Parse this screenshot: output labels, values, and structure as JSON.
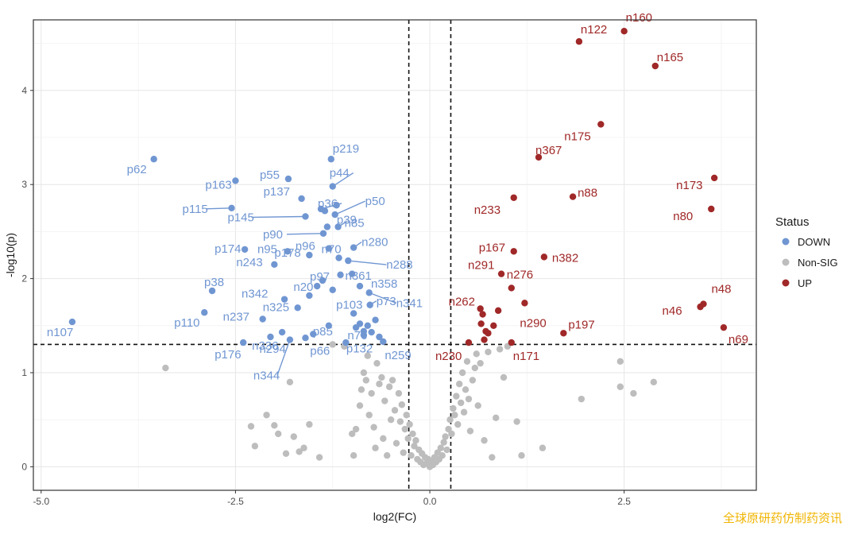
{
  "chart_data": {
    "type": "scatter",
    "title": "",
    "xlabel": "log2(FC)",
    "ylabel": "-log10(p)",
    "xlim": [
      -5.1,
      4.2
    ],
    "ylim": [
      -0.25,
      4.75
    ],
    "x_ticks": [
      -5,
      -2.5,
      0,
      2.5
    ],
    "x_tick_labels": [
      "-5.0",
      "-2.5",
      "0.0",
      "2.5"
    ],
    "y_ticks": [
      0,
      1,
      2,
      3,
      4
    ],
    "y_tick_labels": [
      "0",
      "1",
      "2",
      "3",
      "4"
    ],
    "grid": true,
    "threshold_lines": {
      "vertical": [
        -0.27,
        0.27
      ],
      "horizontal": 1.3
    },
    "legend": {
      "title": "Status",
      "placement": "right",
      "entries": [
        {
          "label": "DOWN",
          "color": "#7096d2"
        },
        {
          "label": "Non-SIG",
          "color": "#bdbdbd"
        },
        {
          "label": "UP",
          "color": "#a02828"
        }
      ]
    },
    "series": [
      {
        "name": "DOWN",
        "color": "#7096d2",
        "points": [
          {
            "x": -4.6,
            "y": 1.54,
            "label": "n107"
          },
          {
            "x": -3.55,
            "y": 3.27,
            "label": "p62"
          },
          {
            "x": -2.9,
            "y": 1.64,
            "label": "p110"
          },
          {
            "x": -2.8,
            "y": 1.87,
            "label": "p38"
          },
          {
            "x": -2.5,
            "y": 3.04,
            "label": "p163"
          },
          {
            "x": -2.55,
            "y": 2.75,
            "label": "p115"
          },
          {
            "x": -2.38,
            "y": 2.31,
            "label": "p174"
          },
          {
            "x": -2.4,
            "y": 1.32,
            "label": "p176"
          },
          {
            "x": -2.15,
            "y": 1.57,
            "label": "n237"
          },
          {
            "x": -2.05,
            "y": 1.38,
            "label": "n294"
          },
          {
            "x": -2.0,
            "y": 2.15,
            "label": "n243"
          },
          {
            "x": -1.9,
            "y": 1.43,
            "label": "n336"
          },
          {
            "x": -1.87,
            "y": 1.78,
            "label": "n342"
          },
          {
            "x": -1.8,
            "y": 1.35,
            "label": "n344"
          },
          {
            "x": -1.83,
            "y": 2.29,
            "label": "n95"
          },
          {
            "x": -1.82,
            "y": 3.06,
            "label": "p55"
          },
          {
            "x": -1.65,
            "y": 2.85,
            "label": "p137"
          },
          {
            "x": -1.6,
            "y": 2.66,
            "label": "p145"
          },
          {
            "x": -1.7,
            "y": 1.69,
            "label": "n325"
          },
          {
            "x": -1.55,
            "y": 1.82,
            "label": "n20"
          },
          {
            "x": -1.55,
            "y": 2.25,
            "label": "p178"
          },
          {
            "x": -1.5,
            "y": 1.41,
            "label": "p66"
          },
          {
            "x": -1.4,
            "y": 2.74,
            "label": "p36"
          },
          {
            "x": -1.37,
            "y": 2.48,
            "label": "p90"
          },
          {
            "x": -1.38,
            "y": 1.98,
            "label": "p97"
          },
          {
            "x": -1.32,
            "y": 2.55,
            "label": "p39"
          },
          {
            "x": -1.3,
            "y": 2.32,
            "label": "n96"
          },
          {
            "x": -1.3,
            "y": 1.5,
            "label": "p85"
          },
          {
            "x": -1.25,
            "y": 2.98,
            "label": "p44"
          },
          {
            "x": -1.27,
            "y": 3.27,
            "label": "p219"
          },
          {
            "x": -1.22,
            "y": 2.68,
            "label": "p50"
          },
          {
            "x": -1.18,
            "y": 2.55,
            "label": "n85"
          },
          {
            "x": -1.17,
            "y": 2.22,
            "label": "n70"
          },
          {
            "x": -1.15,
            "y": 2.04,
            "label": "n361"
          },
          {
            "x": -1.08,
            "y": 1.32,
            "label": "n76"
          },
          {
            "x": -1.05,
            "y": 2.19,
            "label": "n288"
          },
          {
            "x": -0.98,
            "y": 2.33,
            "label": "n280"
          },
          {
            "x": -0.98,
            "y": 1.63,
            "label": "p103"
          },
          {
            "x": -0.9,
            "y": 1.92,
            "label": "n358"
          },
          {
            "x": -0.85,
            "y": 1.4,
            "label": "p132"
          },
          {
            "x": -0.78,
            "y": 1.85,
            "label": "n341"
          },
          {
            "x": -0.77,
            "y": 1.72,
            "label": "p73"
          },
          {
            "x": -0.6,
            "y": 1.33,
            "label": "n259"
          },
          {
            "x": -1.45,
            "y": 1.92
          },
          {
            "x": -1.35,
            "y": 2.72
          },
          {
            "x": -1.2,
            "y": 2.78
          },
          {
            "x": -1.0,
            "y": 2.05
          },
          {
            "x": -0.95,
            "y": 1.48
          },
          {
            "x": -0.9,
            "y": 1.52
          },
          {
            "x": -0.85,
            "y": 1.44
          },
          {
            "x": -0.8,
            "y": 1.5
          },
          {
            "x": -0.75,
            "y": 1.43
          },
          {
            "x": -0.7,
            "y": 1.56
          },
          {
            "x": -0.65,
            "y": 1.38
          },
          {
            "x": -1.6,
            "y": 1.37
          },
          {
            "x": -1.25,
            "y": 1.88
          }
        ]
      },
      {
        "name": "Non-SIG",
        "color": "#bdbdbd",
        "points": [
          {
            "x": -3.4,
            "y": 1.05
          },
          {
            "x": -2.3,
            "y": 0.43
          },
          {
            "x": -2.25,
            "y": 0.22
          },
          {
            "x": -2.1,
            "y": 0.55
          },
          {
            "x": -2.0,
            "y": 0.44
          },
          {
            "x": -1.95,
            "y": 0.35
          },
          {
            "x": -1.85,
            "y": 0.14
          },
          {
            "x": -1.8,
            "y": 0.9
          },
          {
            "x": -1.75,
            "y": 0.32
          },
          {
            "x": -1.68,
            "y": 0.16
          },
          {
            "x": -1.62,
            "y": 0.2
          },
          {
            "x": -1.55,
            "y": 0.45
          },
          {
            "x": -1.42,
            "y": 0.1
          },
          {
            "x": -1.25,
            "y": 1.3
          },
          {
            "x": -1.1,
            "y": 1.28
          },
          {
            "x": -1.0,
            "y": 0.35
          },
          {
            "x": -0.98,
            "y": 0.12
          },
          {
            "x": -0.95,
            "y": 0.4
          },
          {
            "x": -0.9,
            "y": 0.65
          },
          {
            "x": -0.88,
            "y": 0.82
          },
          {
            "x": -0.85,
            "y": 1.0
          },
          {
            "x": -0.82,
            "y": 0.92
          },
          {
            "x": -0.8,
            "y": 1.18
          },
          {
            "x": -0.78,
            "y": 0.55
          },
          {
            "x": -0.75,
            "y": 0.78
          },
          {
            "x": -0.72,
            "y": 0.42
          },
          {
            "x": -0.7,
            "y": 0.2
          },
          {
            "x": -0.68,
            "y": 1.1
          },
          {
            "x": -0.65,
            "y": 0.88
          },
          {
            "x": -0.62,
            "y": 0.95
          },
          {
            "x": -0.6,
            "y": 0.3
          },
          {
            "x": -0.58,
            "y": 0.7
          },
          {
            "x": -0.55,
            "y": 0.12
          },
          {
            "x": -0.52,
            "y": 0.85
          },
          {
            "x": -0.5,
            "y": 0.5
          },
          {
            "x": -0.48,
            "y": 0.92
          },
          {
            "x": -0.45,
            "y": 0.6
          },
          {
            "x": -0.43,
            "y": 0.25
          },
          {
            "x": -0.4,
            "y": 0.78
          },
          {
            "x": -0.38,
            "y": 0.48
          },
          {
            "x": -0.36,
            "y": 0.66
          },
          {
            "x": -0.34,
            "y": 0.15
          },
          {
            "x": -0.32,
            "y": 0.4
          },
          {
            "x": -0.3,
            "y": 0.55
          },
          {
            "x": -0.28,
            "y": 0.3
          },
          {
            "x": -0.26,
            "y": 0.45
          },
          {
            "x": -0.24,
            "y": 0.12
          },
          {
            "x": -0.22,
            "y": 0.35
          },
          {
            "x": -0.2,
            "y": 0.22
          },
          {
            "x": -0.18,
            "y": 0.28
          },
          {
            "x": -0.16,
            "y": 0.08
          },
          {
            "x": -0.14,
            "y": 0.18
          },
          {
            "x": -0.12,
            "y": 0.05
          },
          {
            "x": -0.1,
            "y": 0.14
          },
          {
            "x": -0.08,
            "y": 0.02
          },
          {
            "x": -0.06,
            "y": 0.1
          },
          {
            "x": -0.04,
            "y": 0.04
          },
          {
            "x": -0.02,
            "y": 0.08
          },
          {
            "x": 0.0,
            "y": 0.0
          },
          {
            "x": 0.02,
            "y": 0.06
          },
          {
            "x": 0.04,
            "y": 0.02
          },
          {
            "x": 0.06,
            "y": 0.1
          },
          {
            "x": 0.08,
            "y": 0.05
          },
          {
            "x": 0.1,
            "y": 0.15
          },
          {
            "x": 0.12,
            "y": 0.08
          },
          {
            "x": 0.14,
            "y": 0.2
          },
          {
            "x": 0.16,
            "y": 0.12
          },
          {
            "x": 0.18,
            "y": 0.26
          },
          {
            "x": 0.2,
            "y": 0.32
          },
          {
            "x": 0.22,
            "y": 0.18
          },
          {
            "x": 0.24,
            "y": 0.4
          },
          {
            "x": 0.26,
            "y": 0.5
          },
          {
            "x": 0.28,
            "y": 0.35
          },
          {
            "x": 0.3,
            "y": 0.62
          },
          {
            "x": 0.32,
            "y": 0.55
          },
          {
            "x": 0.34,
            "y": 0.75
          },
          {
            "x": 0.36,
            "y": 0.45
          },
          {
            "x": 0.38,
            "y": 0.88
          },
          {
            "x": 0.4,
            "y": 0.68
          },
          {
            "x": 0.42,
            "y": 1.0
          },
          {
            "x": 0.44,
            "y": 0.58
          },
          {
            "x": 0.46,
            "y": 0.82
          },
          {
            "x": 0.48,
            "y": 1.12
          },
          {
            "x": 0.5,
            "y": 0.72
          },
          {
            "x": 0.52,
            "y": 0.38
          },
          {
            "x": 0.55,
            "y": 0.92
          },
          {
            "x": 0.58,
            "y": 1.05
          },
          {
            "x": 0.6,
            "y": 1.2
          },
          {
            "x": 0.62,
            "y": 0.65
          },
          {
            "x": 0.65,
            "y": 1.1
          },
          {
            "x": 0.7,
            "y": 0.28
          },
          {
            "x": 0.75,
            "y": 1.22
          },
          {
            "x": 0.8,
            "y": 0.1
          },
          {
            "x": 0.85,
            "y": 0.52
          },
          {
            "x": 0.9,
            "y": 1.25
          },
          {
            "x": 0.95,
            "y": 0.95
          },
          {
            "x": 1.0,
            "y": 1.28
          },
          {
            "x": 1.12,
            "y": 0.48
          },
          {
            "x": 1.18,
            "y": 0.12
          },
          {
            "x": 1.45,
            "y": 0.2
          },
          {
            "x": 1.95,
            "y": 0.72
          },
          {
            "x": 2.45,
            "y": 0.85
          },
          {
            "x": 2.45,
            "y": 1.12
          },
          {
            "x": 2.62,
            "y": 0.78
          },
          {
            "x": 2.88,
            "y": 0.9
          }
        ]
      },
      {
        "name": "UP",
        "color": "#a02828",
        "points": [
          {
            "x": 0.5,
            "y": 1.32,
            "label": "n230"
          },
          {
            "x": 0.65,
            "y": 1.68,
            "label": "n262"
          },
          {
            "x": 0.68,
            "y": 1.62
          },
          {
            "x": 0.66,
            "y": 1.52
          },
          {
            "x": 0.72,
            "y": 1.44
          },
          {
            "x": 0.7,
            "y": 1.35
          },
          {
            "x": 0.75,
            "y": 1.42
          },
          {
            "x": 0.82,
            "y": 1.5
          },
          {
            "x": 0.88,
            "y": 1.66
          },
          {
            "x": 0.92,
            "y": 2.05,
            "label": "n291"
          },
          {
            "x": 1.05,
            "y": 1.9,
            "label": "n276"
          },
          {
            "x": 1.05,
            "y": 1.32,
            "label": "n171"
          },
          {
            "x": 1.08,
            "y": 2.86,
            "label": "n233"
          },
          {
            "x": 1.08,
            "y": 2.29,
            "label": "p167"
          },
          {
            "x": 1.22,
            "y": 1.74,
            "label": "n290"
          },
          {
            "x": 1.4,
            "y": 3.29,
            "label": "n367"
          },
          {
            "x": 1.47,
            "y": 2.23,
            "label": "n382"
          },
          {
            "x": 1.72,
            "y": 1.42,
            "label": "p197"
          },
          {
            "x": 1.84,
            "y": 2.87,
            "label": "n88"
          },
          {
            "x": 1.92,
            "y": 4.52,
            "label": "n122"
          },
          {
            "x": 2.2,
            "y": 3.64,
            "label": "n175"
          },
          {
            "x": 2.5,
            "y": 4.63,
            "label": "n160"
          },
          {
            "x": 2.9,
            "y": 4.26,
            "label": "n165"
          },
          {
            "x": 3.48,
            "y": 1.7,
            "label": "n46"
          },
          {
            "x": 3.52,
            "y": 1.73,
            "label": "n48"
          },
          {
            "x": 3.62,
            "y": 2.74,
            "label": "n80"
          },
          {
            "x": 3.66,
            "y": 3.07,
            "label": "n173"
          },
          {
            "x": 3.78,
            "y": 1.48,
            "label": "n69"
          }
        ]
      }
    ]
  },
  "watermark": "全球原研药仿制药资讯"
}
